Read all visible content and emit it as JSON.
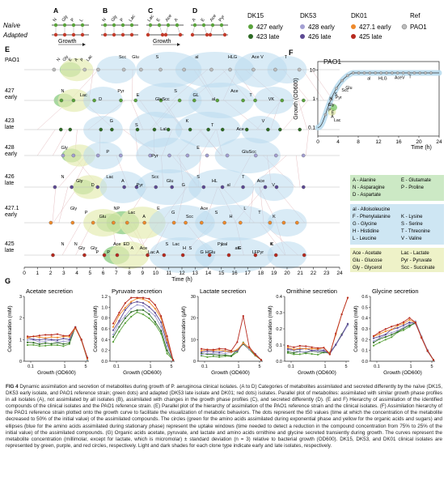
{
  "colors": {
    "dk15_early": "#5aa33c",
    "dk15_late": "#c23b2b",
    "dk53_early": "#8d86c2",
    "dk53_late": "#6b5aa0",
    "dk01_early": "#e0802a",
    "dk01_late": "#c0392b",
    "ref": "#9a9a9a",
    "blue": "#b9dbee",
    "yellow": "#eef2c8",
    "green": "#6cbf5a"
  },
  "legend": {
    "dk15": "DK15",
    "dk53": "DK53",
    "dk01": "DK01",
    "ref": "Ref",
    "e427": "427 early",
    "l423": "423 late",
    "e428": "428 early",
    "l426": "426 late",
    "e4271": "427.1 early",
    "l425": "425 late",
    "pao1": "PAO1"
  },
  "panels_abcd": {
    "labels": [
      "A",
      "B",
      "C",
      "D"
    ],
    "naive": "Naïve",
    "adapted": "Adapted",
    "growth": "Growth",
    "a_mets": [
      "N",
      "Gly",
      "P",
      "L"
    ],
    "b_mets": [
      "N",
      "Gly",
      "P",
      "Lac"
    ],
    "c_mets": [
      "Lac",
      "E",
      "Ace",
      "A"
    ],
    "d_mets": [
      "A",
      "E",
      "Ace",
      "Pyr"
    ]
  },
  "panel_e": {
    "label": "E",
    "axis_label": "Time (h)",
    "ticks": [
      "0",
      "1",
      "2",
      "3",
      "4",
      "5",
      "6",
      "7",
      "8",
      "9",
      "10",
      "11",
      "12",
      "13",
      "14",
      "15",
      "16",
      "17",
      "18",
      "19",
      "20",
      "21",
      "22",
      "23",
      "24"
    ],
    "rows": [
      {
        "name": "PAO1",
        "sub": ""
      },
      {
        "name": "427",
        "sub": "early"
      },
      {
        "name": "423",
        "sub": "late"
      },
      {
        "name": "428",
        "sub": "early"
      },
      {
        "name": "426",
        "sub": "late"
      },
      {
        "name": "427.1",
        "sub": "early"
      },
      {
        "name": "425",
        "sub": "late"
      }
    ],
    "row_labels": [
      [
        "N",
        "Gly",
        "E",
        "A",
        "P",
        "Lac",
        "Scc",
        "Glu",
        "S",
        "al",
        "HLG",
        "Ace V",
        "T"
      ],
      [
        "N",
        "Lac",
        "D",
        "Pyr",
        "E",
        "GluScc",
        "S",
        "GL",
        "al",
        "Ace",
        "T",
        "VK"
      ],
      [
        "G",
        "S",
        "Lal",
        "K",
        "T",
        "Ace",
        "V"
      ],
      [
        "Gly",
        "P",
        "Pyr",
        "E",
        "GluScc"
      ],
      [
        "N",
        "Gly",
        "D",
        "Lac",
        "A",
        "Pyr",
        "Scc",
        "Glu",
        "G",
        "S",
        "HL",
        "al",
        "T",
        "Ace",
        "V"
      ],
      [
        "Gly",
        "P",
        "Glu",
        "NP",
        "Lac",
        "A",
        "E",
        "G",
        "Scc",
        "Ace",
        "S",
        "H",
        "L",
        "T",
        "K"
      ],
      [
        "N",
        "Gly",
        "P",
        "ED",
        "Ace",
        "A",
        "Lac",
        "S",
        "HGlu",
        "Lal",
        "G",
        "FPyr",
        "K"
      ],
      [
        "N",
        "Gly",
        "P",
        "Ace",
        "A",
        "Lac",
        "S",
        "H",
        "G",
        "Pyr",
        "alF",
        "L",
        "K"
      ]
    ]
  },
  "legend_box": {
    "green": [
      "A - Alanine",
      "E - Glutamate",
      "N - Asparagine",
      "P - Proline",
      "D - Aspartate"
    ],
    "blue": [
      "al - Alloisoleucine",
      "F - Phenylalanine",
      "K - Lysine",
      "G - Glycine",
      "S - Serine",
      "H - Histidine",
      "T - Threonine",
      "L - Leucine",
      "V - Valine"
    ],
    "yellow": [
      "Ace - Acetate",
      "Lac - Lactate",
      "Glu - Glucose",
      "Pyr - Pyruvate",
      "Gly - Glycerol",
      "Scc - Succinate"
    ]
  },
  "panel_f": {
    "label": "F",
    "title": "PAO1",
    "ylabel": "Growth (OD600)",
    "xlabel": "Time (h)",
    "x_ticks": [
      "0",
      "4",
      "8",
      "12",
      "16",
      "20",
      "24"
    ],
    "y_ticks": [
      "0.1",
      "1",
      "10"
    ],
    "annotations": [
      "Scc",
      "Glu",
      "al",
      "HLG",
      "AceV",
      "T",
      "N",
      "Gly",
      "P",
      "E",
      "A",
      "Lac",
      "S",
      "Pyr"
    ]
  },
  "panel_g": {
    "label": "G",
    "xlabel": "Growth (OD600)",
    "charts": [
      {
        "title": "Acetate secretion",
        "ylabel": "Concentration (mM)",
        "yticks": [
          "0",
          "1",
          "2",
          "3"
        ],
        "xticks": [
          "0.1",
          "1",
          "5"
        ]
      },
      {
        "title": "Pyruvate secretion",
        "ylabel": "Concentration (mM)",
        "yticks": [
          "0.0",
          "0.2",
          "0.4",
          "0.6",
          "0.8",
          "1.0",
          "1.2"
        ],
        "xticks": [
          "0.1",
          "1",
          "5"
        ]
      },
      {
        "title": "Lactate secretion",
        "ylabel": "Concentration (μM)",
        "yticks": [
          "0",
          "10",
          "20",
          "30"
        ],
        "xticks": [
          "0.1",
          "1",
          "5"
        ]
      },
      {
        "title": "Ornithine secretion",
        "ylabel": "Concentration (mM)",
        "yticks": [
          "0.0",
          "0.1",
          "0.2",
          "0.3",
          "0.4"
        ],
        "xticks": [
          "0.1",
          "1",
          "5"
        ]
      },
      {
        "title": "Glycine secretion",
        "ylabel": "Concentration (mM)",
        "yticks": [
          "0.0",
          "0.1",
          "0.2",
          "0.3",
          "0.4",
          "0.5",
          "0.6"
        ],
        "xticks": [
          "0.1",
          "1",
          "5"
        ]
      }
    ]
  },
  "caption": {
    "label": "FIG 4",
    "text": " Dynamic assimilation and secretion of metabolites during growth of P. aeruginosa clinical isolates. (A to D) Categories of metabolites assimilated and secreted differently by the naïve (DK15, DK53 early isolate, and PAO1 reference strain; green dots) and adapted (DK53 late isolate and DK01; red dots) isolates. Parallel plot of metabolites: assimilated with similar growth phase profiles in all isolates (A), not assimilated by all isolates (B), assimilated with changes in the growth phase profiles (C), and secreted differently (D). (E and F) Hierarchy of assimilation of the identified compounds of the clinical isolates and the PAO1 reference strain. (E) Parallel plot of the hierarchy of assimilation of the PAO1 reference strain and the clinical isolates. (F) Assimilation hierarchy of the PAO1 reference strain plotted onto the growth curve to facilitate the visualization of metabolic behaviors. The dots represent the t50 values (time at which the concentration of the metabolite decreased to 50% of the initial value) of the assimilated compounds. The circles (green for the amino acids assimilated during exponential phase and yellow for the organic acids and sugars) and ellipses (blue for the amino acids assimilated during stationary phase) represent the uptake windows (time needed to detect a reduction in the compound concentration from 75% to 25% of the initial value) of the assimilated compounds. (G) Organic acids acetate, pyruvate, and lactate and amino acids ornithine and glycine secreted transiently during growth. The curves represent the metabolite concentration (millimolar, except for lactate, which is micromolar) ± standard deviation (n = 3) relative to bacterial growth (OD600). DK15, DK53, and DK01 clinical isolates are represented by green, purple, and red circles, respectively. Light and dark shades for each clone type indicate early and late isolates, respectively."
  }
}
